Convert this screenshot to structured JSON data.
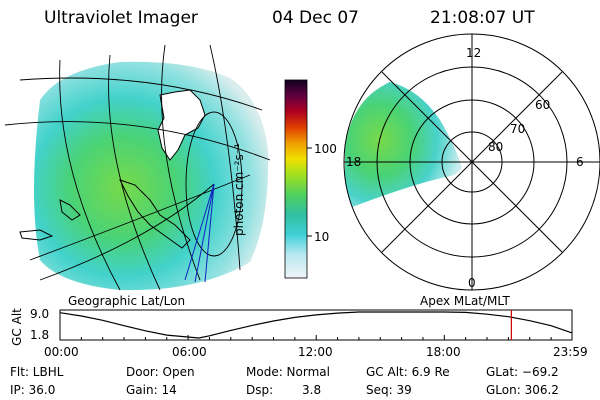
{
  "header": {
    "instrument": "Ultraviolet Imager",
    "date": "04 Dec 07",
    "time": "21:08:07 UT"
  },
  "colorbar": {
    "unit_label": "photon cm⁻²s⁻¹",
    "ticks": [
      "100",
      "10"
    ]
  },
  "polar_plot": {
    "mlt_labels": [
      "12",
      "18",
      "6",
      "0"
    ],
    "lat_labels": [
      "60",
      "70",
      "80"
    ]
  },
  "captions": {
    "left": "Geographic Lat/Lon",
    "right": "Apex MLat/MLT"
  },
  "altitude_plot": {
    "ylabel": "GC Alt",
    "yticks": [
      "9.0",
      "1.8"
    ],
    "xticks": [
      "00:00",
      "06:00",
      "12:00",
      "18:00",
      "23:59"
    ]
  },
  "status": {
    "flt": "Flt: LBHL",
    "ip": "IP: 36.0",
    "door": "Door: Open",
    "gain": "Gain: 14",
    "mode": "Mode: Normal",
    "dsp_label": "Dsp:",
    "dsp_value": "3.8",
    "gc_alt": "GC Alt: 6.9 Re",
    "seq": "Seq: 39",
    "glat": "GLat: −69.2",
    "glon": "GLon: 306.2"
  },
  "chart_data": {
    "type": "line",
    "x": [
      0,
      1,
      2,
      3,
      4,
      5,
      6.5,
      7,
      8,
      9,
      10,
      11,
      12,
      13,
      14,
      15,
      16,
      17,
      18,
      19,
      20,
      21,
      22,
      23,
      23.98
    ],
    "y": [
      8.8,
      7.9,
      6.7,
      5.2,
      3.8,
      2.6,
      1.8,
      2.4,
      3.9,
      5.3,
      6.5,
      7.5,
      8.2,
      8.7,
      9.0,
      9.2,
      9.3,
      9.3,
      9.2,
      8.9,
      8.4,
      7.7,
      6.6,
      5.2,
      3.2
    ],
    "xlabel": "",
    "ylabel": "GC Alt",
    "ylim": [
      1.8,
      9.0
    ],
    "current_time_marker": 21.14
  },
  "colors": {
    "marker": "#cc0000",
    "grid": "#000000"
  }
}
